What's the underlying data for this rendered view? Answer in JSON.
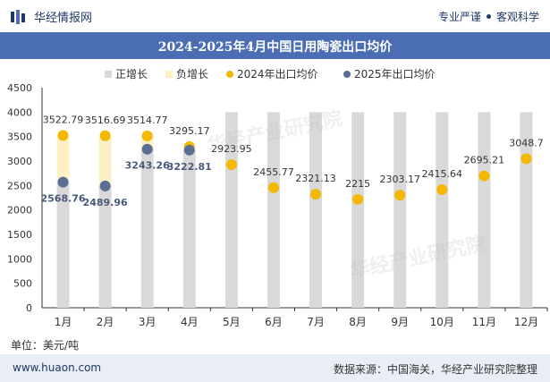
{
  "header": {
    "brand": "华经情报网",
    "tagline_left": "专业严谨",
    "tagline_right": "客观科学"
  },
  "footer": {
    "website": "www.huaon.com",
    "source": "数据来源：中国海关，华经产业研究院整理"
  },
  "watermark": "华经产业研究院",
  "colors": {
    "title_bg": "#4a6db4",
    "series_2024": "#f5b800",
    "series_2025": "#5b6f94",
    "positive_bar": "#d9d9d9",
    "negative_bar": "#fdf0c4"
  },
  "chart_data": {
    "type": "bar",
    "title": "2024-2025年4月中国日用陶瓷出口均价",
    "unit_label": "单位：美元/吨",
    "legend_position": "top-center",
    "ylim": [
      0,
      4500
    ],
    "yticks": [
      "0",
      "500",
      "1000",
      "1500",
      "2000",
      "2500",
      "3000",
      "3500",
      "4000",
      "4500"
    ],
    "categories": [
      "1月",
      "2月",
      "3月",
      "4月",
      "5月",
      "6月",
      "7月",
      "8月",
      "9月",
      "10月",
      "11月",
      "12月"
    ],
    "legend": [
      "正增长",
      "负增长",
      "2024年出口均价",
      "2025年出口均价"
    ],
    "series": [
      {
        "name": "2024年出口均价",
        "values": [
          3522.79,
          3516.69,
          3514.77,
          3295.17,
          2923.95,
          2455.77,
          2321.13,
          2215,
          2303.17,
          2415.64,
          2695.21,
          3048.7
        ],
        "labels": [
          "3522.79",
          "3516.69",
          "3514.77",
          "3295.17",
          "2923.95",
          "2455.77",
          "2321.13",
          "2215",
          "2303.17",
          "2415.64",
          "2695.21",
          "3048.7"
        ]
      },
      {
        "name": "2025年出口均价",
        "values": [
          2568.76,
          2489.96,
          3243.26,
          3222.81,
          null,
          null,
          null,
          null,
          null,
          null,
          null,
          null
        ],
        "labels": [
          "2568.76",
          "2489.96",
          "3243.26",
          "3222.81",
          "",
          "",
          "",
          "",
          "",
          "",
          "",
          ""
        ]
      }
    ],
    "positive_growth": [
      null,
      null,
      null,
      null,
      4000,
      4000,
      4000,
      4000,
      4000,
      4000,
      4000,
      4000
    ],
    "negative_growth_range": [
      [
        2568.76,
        3522.79
      ],
      [
        2489.96,
        3516.69
      ],
      [
        3243.26,
        3514.77
      ],
      [
        3222.81,
        3295.17
      ],
      null,
      null,
      null,
      null,
      null,
      null,
      null,
      null
    ]
  }
}
